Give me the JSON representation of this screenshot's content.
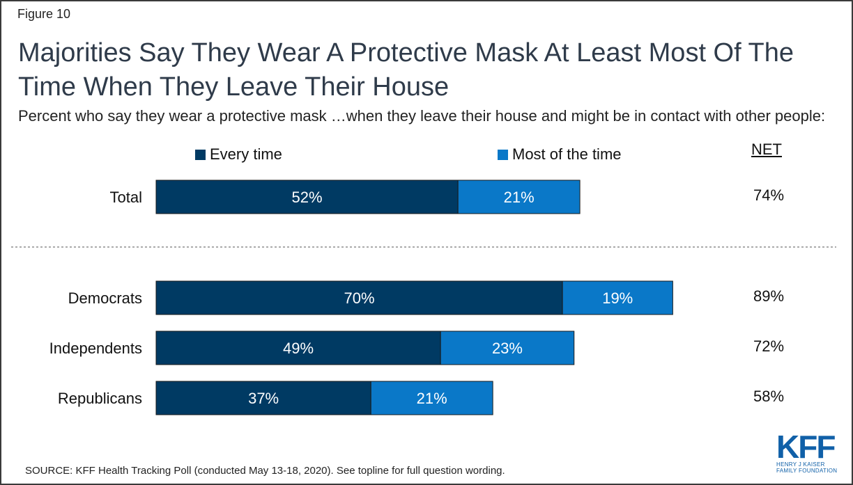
{
  "figure_label": "Figure 10",
  "title": "Majorities Say They Wear A Protective Mask At Least Most Of The Time When They Leave Their House",
  "subtitle": "Percent who say they wear a protective mask …when they leave their house and might be in contact with other people:",
  "net_header": "NET",
  "source": "SOURCE: KFF Health Tracking Poll (conducted May 13-18, 2020). See topline for full question wording.",
  "logo": {
    "mark": "KFF",
    "line1": "HENRY J KAISER",
    "line2": "FAMILY FOUNDATION"
  },
  "colors": {
    "every_time": "#003a63",
    "most_of_time": "#0a78c8",
    "background": "#ffffff",
    "border": "#3a3a3a"
  },
  "chart_data": {
    "type": "bar",
    "orientation": "horizontal",
    "stacked": true,
    "categories": [
      "Total",
      "Democrats",
      "Independents",
      "Republicans"
    ],
    "series": [
      {
        "name": "Every time",
        "values": [
          52,
          70,
          49,
          37
        ],
        "labels": [
          "52%",
          "70%",
          "49%",
          "37%"
        ],
        "color": "#003a63"
      },
      {
        "name": "Most of the time",
        "values": [
          21,
          19,
          23,
          21
        ],
        "labels": [
          "21%",
          "19%",
          "23%",
          "21%"
        ],
        "color": "#0a78c8"
      }
    ],
    "net": {
      "values": [
        74,
        89,
        72,
        58
      ],
      "labels": [
        "74%",
        "89%",
        "72%",
        "58%"
      ]
    },
    "xlim": [
      0,
      100
    ],
    "grid": false,
    "legend_placement": "top",
    "separator_after": "Total"
  }
}
